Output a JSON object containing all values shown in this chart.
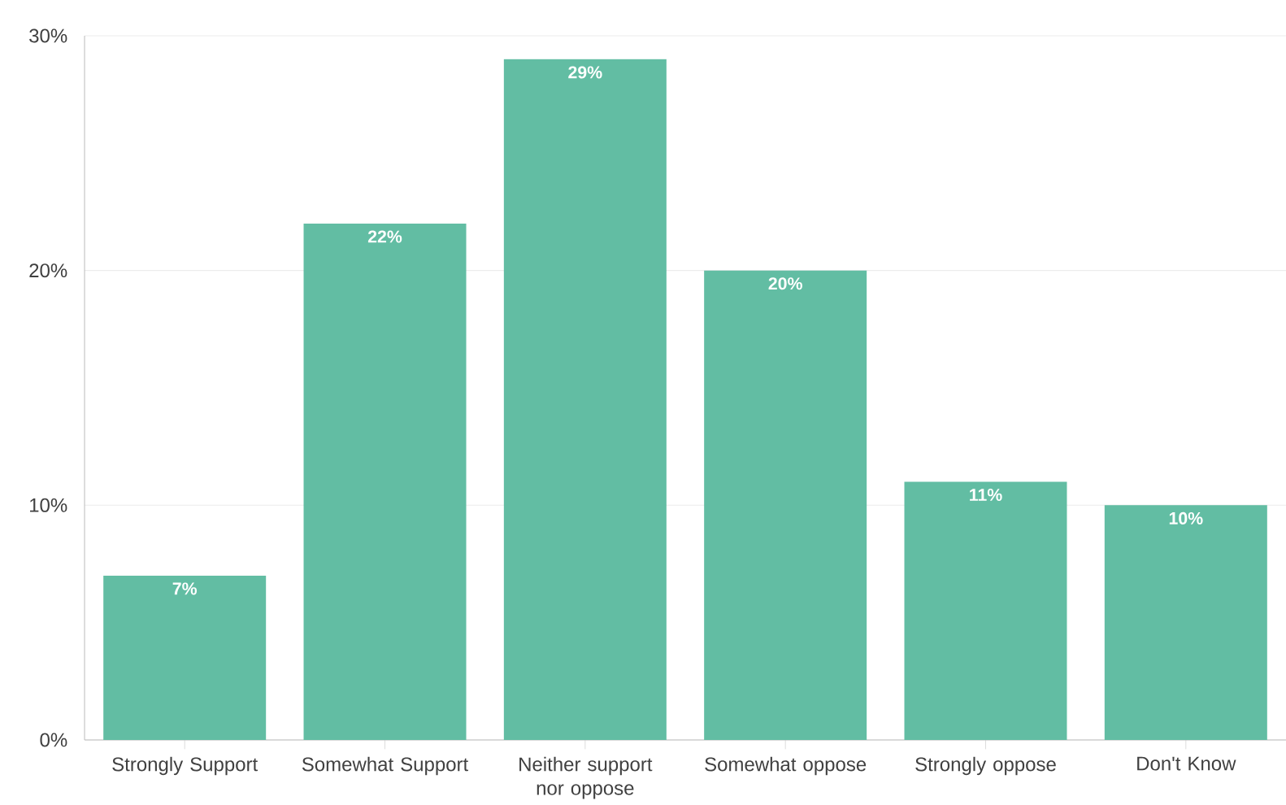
{
  "chart_data": {
    "type": "bar",
    "categories": [
      "Strongly Support",
      "Somewhat Support",
      "Neither support nor oppose",
      "Somewhat oppose",
      "Strongly oppose",
      "Don't Know"
    ],
    "values": [
      7,
      22,
      29,
      20,
      11,
      10
    ],
    "value_labels": [
      "7%",
      "22%",
      "29%",
      "20%",
      "11%",
      "10%"
    ],
    "color": "#62bda3",
    "ylim": [
      0,
      30
    ],
    "yticks": [
      {
        "value": 0,
        "label": "0%"
      },
      {
        "value": 10,
        "label": "10%"
      },
      {
        "value": 20,
        "label": "20%"
      },
      {
        "value": 30,
        "label": "30%"
      }
    ],
    "grid": "y"
  }
}
